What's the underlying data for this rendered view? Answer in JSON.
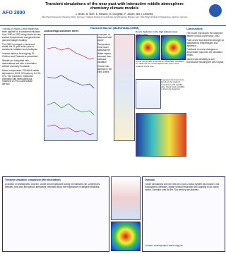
{
  "header": {
    "logo": "AFO 2000",
    "title": "Transient simulations of the near past with interactive middle atmosphere chemistry climate models",
    "authors": "C. Brühl¹, B. Steil¹, E. Manzini², M. Giorgetta³, P. Jöckel¹, and J. Lelieveld¹",
    "affiliations": "¹ Max Planck Institute for Chemistry, Mainz, Germany; ² National Institute for Geophysics and Volcanology, Bologna, Italy; ³ Max Planck Institute for Meteorology, Hamburg, Germany"
  },
  "left": {
    "paragraphs": [
      "The MA-ECHAM4-CHEM model has been applied for a transient simulation from 1960 to 1999 using observed sea surface temperatures and greenhouse gas and halogen loading.",
      "The QBO is nudged to observed winds, the 11-year solar cycle is included in radiation and photolysis.",
      "Volcanic aerosol from Agung, El Chichon and Pinatubo is prescribed.",
      "Results are compared with observations and with a simulation without chemistry feedback.",
      "Model components: ECHAM4 middle atmosphere GCM, 39 levels up to 0.01 hPa, T30 resolution, interactive chemistry with heterogeneous reactions on PSCs and sulfate aerosol."
    ]
  },
  "center": {
    "heading": "Transient MA-run (MAECHAM4-CHEM)",
    "panel_title": "Zonal average ozone/time series",
    "notes": [
      "Simulated vs. observed total ozone",
      "Temperature trend lower stratosphere",
      "Water vapour increase from methane oxidation",
      "Ozone hole appears in the early 1980s"
    ]
  },
  "right": {
    "heading": "Ozone depletion in the high latitude lower stratosphere",
    "caption": "Ozone mixing ratio at 50 hPa for September, simulated vs. observed; the model captures the onset of the Antarctic ozone hole.",
    "text": "Integrated chemical ozone loss from the model in comparison with satellite data. Interannual variability is driven by dynamics."
  },
  "conclusions": {
    "heading": "Conclusions",
    "items": [
      "The model reproduces the observed decline of total ozone since 1980.",
      "Polar ozone loss depends strongly on stratospheric temperatures and dynamics.",
      "Feedback of ozone changes on temperature improves the simulated trends.",
      "Interannual variability is well reproduced including the QBO signal."
    ]
  },
  "bottom": {
    "heading": "Transient simulation: comparison with observations",
    "text": "Evolution of stratospheric chlorine, ozone and temperature during the transient run. Differences between runs with and without interactive chemistry show the importance of radiative feedback.",
    "outlook_heading": "Outlook",
    "outlook": "Future simulations with the new MESSy/ECHAM5 system will include a full tropospheric chemistry, higher vertical resolution and coupling to an ocean model. Scenario runs for the 21st century are planned.",
    "contact": "Contact: bruehl@mpch-mainz.mpg.de"
  }
}
